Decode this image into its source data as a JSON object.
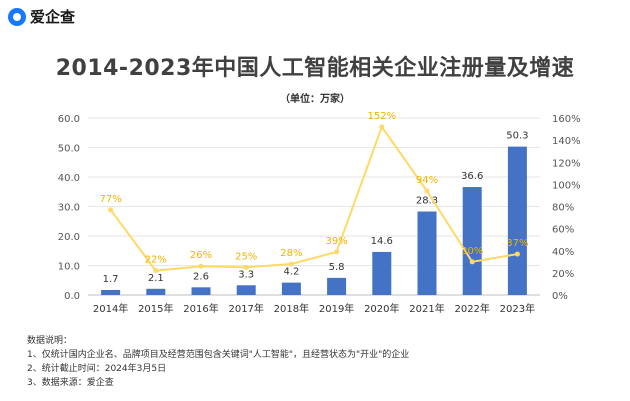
{
  "brand": {
    "logo_text": "爱企查",
    "logo_icon": "search-icon",
    "accent": "#1677ff"
  },
  "chart_data": {
    "type": "bar",
    "title": "2014-2023年中国人工智能相关企业注册量及增速",
    "subtitle": "（单位：万家）",
    "categories": [
      "2014年",
      "2015年",
      "2016年",
      "2017年",
      "2018年",
      "2019年",
      "2020年",
      "2021年",
      "2022年",
      "2023年"
    ],
    "series": [
      {
        "type": "bar",
        "axis": "left",
        "color": "#4472c4",
        "values": [
          1.7,
          2.1,
          2.6,
          3.3,
          4.2,
          5.8,
          14.6,
          28.3,
          36.6,
          50.3
        ],
        "labels": [
          "1.7",
          "2.1",
          "2.6",
          "3.3",
          "4.2",
          "5.8",
          "14.6",
          "28.3",
          "36.6",
          "50.3"
        ]
      },
      {
        "type": "line",
        "axis": "right",
        "color": "#ffd966",
        "values": [
          77,
          22,
          26,
          25,
          28,
          39,
          152,
          94,
          30,
          37
        ],
        "labels": [
          "77%",
          "22%",
          "26%",
          "25%",
          "28%",
          "39%",
          "152%",
          "94%",
          "30%",
          "37%"
        ]
      }
    ],
    "y_left": {
      "min": 0,
      "max": 60,
      "ticks": [
        "0.0",
        "10.0",
        "20.0",
        "30.0",
        "40.0",
        "50.0",
        "60.0"
      ]
    },
    "y_right": {
      "min": 0,
      "max": 160,
      "ticks": [
        "0%",
        "20%",
        "40%",
        "60%",
        "80%",
        "100%",
        "120%",
        "140%",
        "160%"
      ]
    },
    "grid": true,
    "legend": "none"
  },
  "notes": {
    "heading": "数据说明：",
    "items": [
      "1、仅统计国内企业名、品牌项目及经营范围包含关键词\"人工智能\"，且经营状态为\"开业\"的企业",
      "2、统计截止时间：2024年3月5日",
      "3、数据来源：爱企查"
    ]
  }
}
